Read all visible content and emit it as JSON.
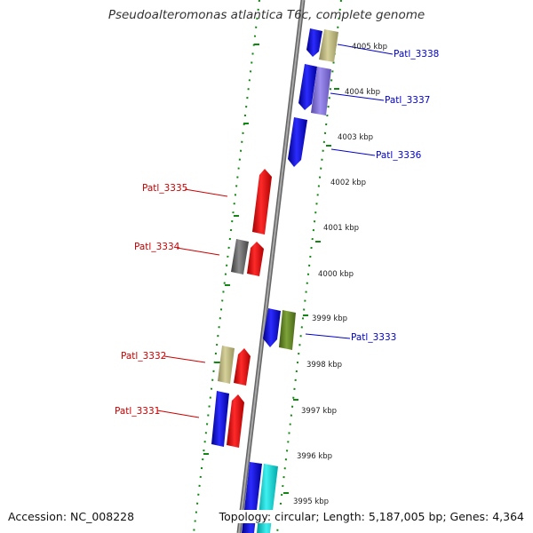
{
  "title": "Pseudoalteromonas atlantica T6c, complete genome",
  "footer": {
    "accession": "Accession: NC_008228",
    "topology": "Topology: circular; Length: 5,187,005 bp; Genes: 4,364"
  },
  "colors": {
    "forward_label": "#0000cc",
    "reverse_label": "#cc0000",
    "backbone": "#8a8a8a",
    "ticks": "#118811"
  },
  "kbp_labels": [
    "4005 kbp",
    "4004 kbp",
    "4003 kbp",
    "4002 kbp",
    "4001 kbp",
    "4000 kbp",
    "3999 kbp",
    "3998 kbp",
    "3997 kbp",
    "3996 kbp",
    "3995 kbp"
  ],
  "gene_labels": [
    {
      "text": "Patl_3338",
      "strand": "forward"
    },
    {
      "text": "Patl_3337",
      "strand": "forward"
    },
    {
      "text": "Patl_3336",
      "strand": "forward"
    },
    {
      "text": "Patl_3335",
      "strand": "reverse"
    },
    {
      "text": "Patl_3334",
      "strand": "reverse"
    },
    {
      "text": "Patl_3333",
      "strand": "forward"
    },
    {
      "text": "Patl_3332",
      "strand": "reverse"
    },
    {
      "text": "Patl_3331",
      "strand": "reverse"
    }
  ]
}
